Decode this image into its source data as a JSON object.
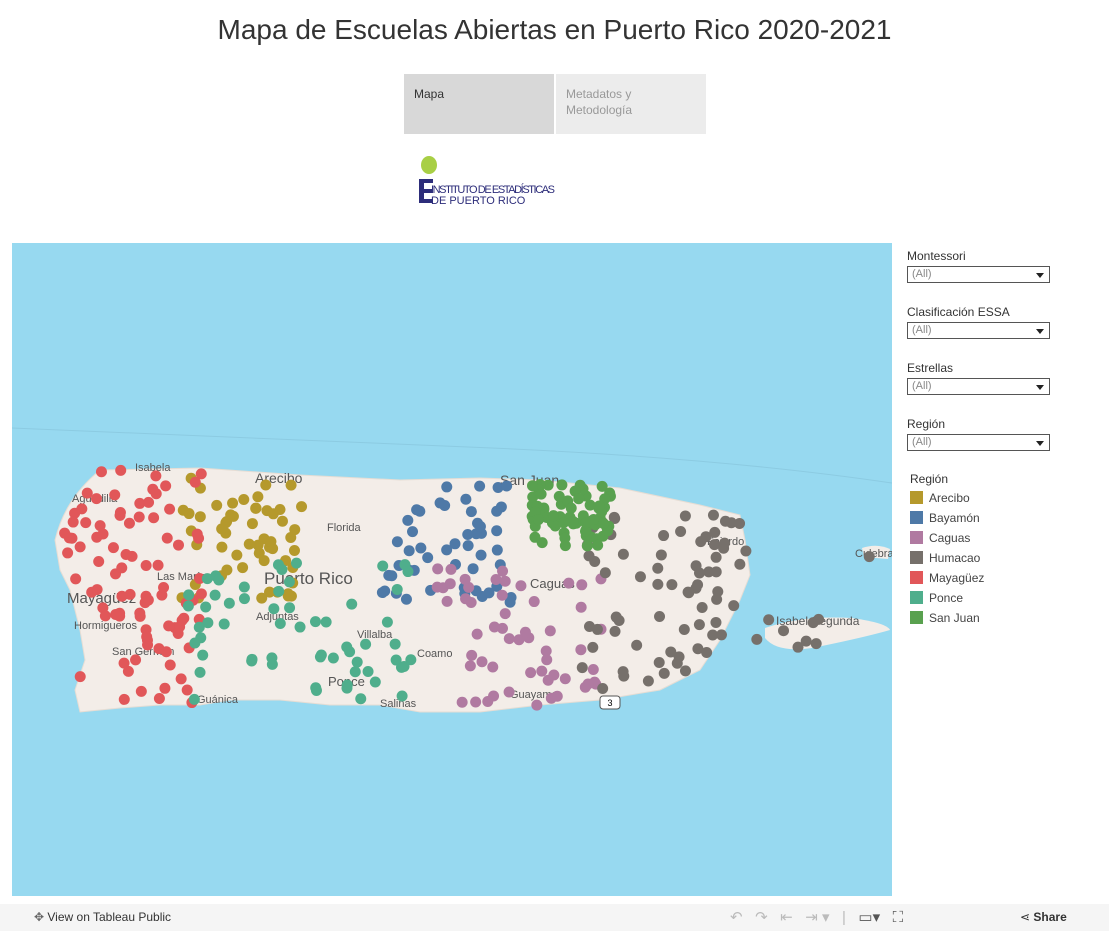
{
  "header": {
    "title": "Mapa de Escuelas Abiertas en Puerto Rico 2020-2021"
  },
  "tabs": [
    "Mapa",
    "Metadatos y Metodología"
  ],
  "logo": {
    "line1": "INSTITUTO DE ESTADÍSTICAS",
    "line2": "DE PUERTO RICO"
  },
  "map": {
    "labels": [
      "San Juan",
      "Arecibo",
      "Puerto Rico",
      "Mayagüez",
      "Isabela",
      "Aguadilla",
      "Florida",
      "Las Marías",
      "Hormigueros",
      "San Germán",
      "Adjuntas",
      "Villalba",
      "Coamo",
      "Salinas",
      "Guayama",
      "Guánica",
      "Ponce",
      "Caguas",
      "Fajardo",
      "Isabel Segunda",
      "Culebra",
      "3"
    ]
  },
  "filters": [
    {
      "label": "Montessori",
      "value": "(All)"
    },
    {
      "label": "Clasificación ESSA",
      "value": "(All)"
    },
    {
      "label": "Estrellas",
      "value": "(All)"
    },
    {
      "label": "Región",
      "value": "(All)"
    }
  ],
  "legend": {
    "title": "Región",
    "items": [
      {
        "name": "Arecibo",
        "color": "#b5992c"
      },
      {
        "name": "Bayamón",
        "color": "#4e79a7"
      },
      {
        "name": "Caguas",
        "color": "#b07aa1"
      },
      {
        "name": "Humacao",
        "color": "#76706b"
      },
      {
        "name": "Mayagüez",
        "color": "#e15759"
      },
      {
        "name": "Ponce",
        "color": "#4fae8c"
      },
      {
        "name": "San Juan",
        "color": "#59a14f"
      }
    ]
  },
  "footer": {
    "link": "View on Tableau Public",
    "share": "Share"
  }
}
